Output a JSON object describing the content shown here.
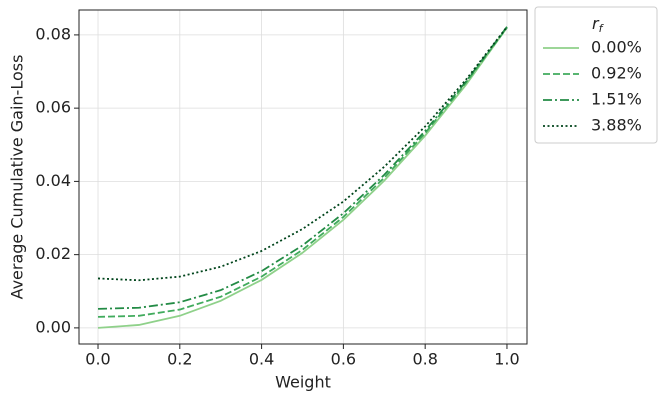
{
  "chart_data": {
    "type": "line",
    "xlabel": "Weight",
    "ylabel": "Average Cumulative Gain-Loss",
    "legend_title": {
      "base": "r",
      "subscript": "f"
    },
    "x": [
      0,
      0.1,
      0.2,
      0.3,
      0.4,
      0.5,
      0.6,
      0.7,
      0.8,
      0.9,
      1.0
    ],
    "series": [
      {
        "name": "0.00%",
        "color": "#8fd18a",
        "dash": "solid",
        "values": [
          0,
          0.0008,
          0.0033,
          0.0074,
          0.0131,
          0.0205,
          0.0295,
          0.0402,
          0.0525,
          0.0664,
          0.082
        ]
      },
      {
        "name": "0.92%",
        "color": "#41ab5d",
        "dash": "dashed",
        "values": [
          0.003,
          0.0033,
          0.005,
          0.0085,
          0.014,
          0.0213,
          0.0303,
          0.041,
          0.0532,
          0.067,
          0.082
        ]
      },
      {
        "name": "1.51%",
        "color": "#238b45",
        "dash": "dashdot",
        "values": [
          0.0052,
          0.0055,
          0.007,
          0.0103,
          0.0155,
          0.0225,
          0.0313,
          0.0418,
          0.0538,
          0.0673,
          0.0822
        ]
      },
      {
        "name": "3.88%",
        "color": "#00441b",
        "dash": "dotted",
        "values": [
          0.0135,
          0.013,
          0.014,
          0.0167,
          0.021,
          0.027,
          0.0345,
          0.044,
          0.055,
          0.0678,
          0.0822
        ]
      }
    ],
    "xlim": [
      -0.0465,
      1.049
    ],
    "ylim": [
      -0.0044,
      0.0868
    ],
    "xticks": [
      {
        "value": 0,
        "label": "0.0"
      },
      {
        "value": 0.2,
        "label": "0.2"
      },
      {
        "value": 0.4,
        "label": "0.4"
      },
      {
        "value": 0.6,
        "label": "0.6"
      },
      {
        "value": 0.8,
        "label": "0.8"
      },
      {
        "value": 1.0,
        "label": "1.0"
      }
    ],
    "yticks": [
      {
        "value": 0,
        "label": "0.00"
      },
      {
        "value": 0.02,
        "label": "0.02"
      },
      {
        "value": 0.04,
        "label": "0.04"
      },
      {
        "value": 0.06,
        "label": "0.06"
      },
      {
        "value": 0.08,
        "label": "0.08"
      }
    ],
    "grid": true,
    "legend": "outside-upper-right"
  }
}
